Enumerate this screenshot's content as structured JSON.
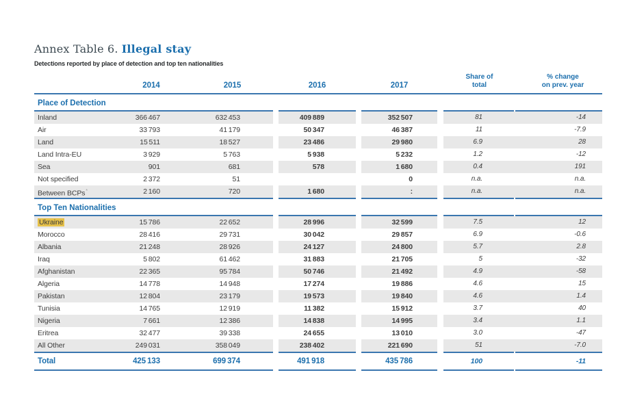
{
  "title": {
    "prefix": "Annex Table 6.",
    "highlight": "Illegal stay"
  },
  "subtitle": "Detections reported by place of detection and top ten nationalities",
  "header": {
    "years": [
      "2014",
      "2015",
      "2016",
      "2017"
    ],
    "share_lines": [
      "Share of",
      "total"
    ],
    "change_lines": [
      "% change",
      "on prev. year"
    ]
  },
  "colors": {
    "accent_blue": "#1c6fad",
    "rule_blue": "#3a76af",
    "row_shade": "#e8e8e8",
    "highlight_yellow": "#e6c14a",
    "body_text": "#3c3c3c"
  },
  "sections": [
    {
      "header": "Place of Detection",
      "rows": [
        {
          "label": "Inland",
          "v2014": "366 467",
          "v2015": "632 453",
          "v2016": "409 889",
          "v2017": "352 507",
          "share": "81",
          "change": "-14"
        },
        {
          "label": "Air",
          "v2014": "33 793",
          "v2015": "41 179",
          "v2016": "50 347",
          "v2017": "46 387",
          "share": "11",
          "change": "-7.9"
        },
        {
          "label": "Land",
          "v2014": "15 511",
          "v2015": "18 527",
          "v2016": "23 486",
          "v2017": "29 980",
          "share": "6.9",
          "change": "28"
        },
        {
          "label": "Land Intra-EU",
          "v2014": "3 929",
          "v2015": "5 763",
          "v2016": "5 938",
          "v2017": "5 232",
          "share": "1.2",
          "change": "-12"
        },
        {
          "label": "Sea",
          "v2014": "901",
          "v2015": "681",
          "v2016": "578",
          "v2017": "1 680",
          "share": "0.4",
          "change": "191"
        },
        {
          "label": "Not specified",
          "v2014": "2 372",
          "v2015": "51",
          "v2016": "",
          "v2017": "0",
          "share": "n.a.",
          "change": "n.a."
        },
        {
          "label": "Between BCPs",
          "label_sup": "*",
          "v2014": "2 160",
          "v2015": "720",
          "v2016": "1 680",
          "v2017": ":",
          "share": "n.a.",
          "change": "n.a."
        }
      ]
    },
    {
      "header": "Top Ten Nationalities",
      "rows": [
        {
          "label": "Ukraine",
          "highlighted": true,
          "v2014": "15 786",
          "v2015": "22 652",
          "v2016": "28 996",
          "v2017": "32 599",
          "share": "7.5",
          "change": "12"
        },
        {
          "label": "Morocco",
          "v2014": "28 416",
          "v2015": "29 731",
          "v2016": "30 042",
          "v2017": "29 857",
          "share": "6.9",
          "change": "-0.6"
        },
        {
          "label": "Albania",
          "v2014": "21 248",
          "v2015": "28 926",
          "v2016": "24 127",
          "v2017": "24 800",
          "share": "5.7",
          "change": "2.8"
        },
        {
          "label": "Iraq",
          "v2014": "5 802",
          "v2015": "61 462",
          "v2016": "31 883",
          "v2017": "21 705",
          "share": "5",
          "change": "-32"
        },
        {
          "label": "Afghanistan",
          "v2014": "22 365",
          "v2015": "95 784",
          "v2016": "50 746",
          "v2017": "21 492",
          "share": "4.9",
          "change": "-58"
        },
        {
          "label": "Algeria",
          "v2014": "14 778",
          "v2015": "14 948",
          "v2016": "17 274",
          "v2017": "19 886",
          "share": "4.6",
          "change": "15"
        },
        {
          "label": "Pakistan",
          "v2014": "12 804",
          "v2015": "23 179",
          "v2016": "19 573",
          "v2017": "19 840",
          "share": "4.6",
          "change": "1.4"
        },
        {
          "label": "Tunisia",
          "v2014": "14 765",
          "v2015": "12 919",
          "v2016": "11 382",
          "v2017": "15 912",
          "share": "3.7",
          "change": "40"
        },
        {
          "label": "Nigeria",
          "v2014": "7 661",
          "v2015": "12 386",
          "v2016": "14 838",
          "v2017": "14 995",
          "share": "3.4",
          "change": "1.1"
        },
        {
          "label": "Eritrea",
          "v2014": "32 477",
          "v2015": "39 338",
          "v2016": "24 655",
          "v2017": "13 010",
          "share": "3.0",
          "change": "-47"
        },
        {
          "label": "All Other",
          "v2014": "249 031",
          "v2015": "358 049",
          "v2016": "238 402",
          "v2017": "221 690",
          "share": "51",
          "change": "-7.0"
        }
      ]
    }
  ],
  "total": {
    "label": "Total",
    "v2014": "425 133",
    "v2015": "699 374",
    "v2016": "491 918",
    "v2017": "435 786",
    "share": "100",
    "change": "-11"
  }
}
